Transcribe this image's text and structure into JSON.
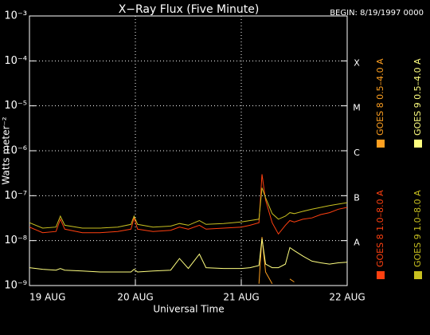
{
  "chart_data": {
    "type": "line",
    "title": "X−Ray Flux (Five Minute)",
    "subtitle": "BEGIN: 8/19/1997 0000",
    "x_label": "Universal Time",
    "y_label": "Watts meter⁻²",
    "ylog": true,
    "grid": true,
    "legend": "right",
    "xlim": [
      0,
      72
    ],
    "xticks": [
      {
        "value": 0,
        "label": "19 AUG"
      },
      {
        "value": 24,
        "label": "20 AUG"
      },
      {
        "value": 48,
        "label": "21 AUG"
      },
      {
        "value": 72,
        "label": "22 AUG"
      }
    ],
    "ylim": [
      1e-09,
      0.001
    ],
    "yticks": [
      {
        "value": 1e-09,
        "label": "10⁻⁹"
      },
      {
        "value": 1e-08,
        "label": "10⁻⁸"
      },
      {
        "value": 1e-07,
        "label": "10⁻⁷"
      },
      {
        "value": 1e-06,
        "label": "10⁻⁶"
      },
      {
        "value": 1e-05,
        "label": "10⁻⁵"
      },
      {
        "value": 0.0001,
        "label": "10⁻⁴"
      },
      {
        "value": 0.001,
        "label": "10⁻³"
      }
    ],
    "flare_classes": [
      {
        "value": 1e-08,
        "label": "A"
      },
      {
        "value": 1e-07,
        "label": "B"
      },
      {
        "value": 1e-06,
        "label": "C"
      },
      {
        "value": 1e-05,
        "label": "M"
      },
      {
        "value": 0.0001,
        "label": "X"
      }
    ],
    "x": [
      0,
      3,
      6,
      7,
      8,
      12,
      16,
      20,
      23,
      23.7,
      24.5,
      28,
      32,
      34,
      36,
      38.5,
      40,
      44,
      48,
      50,
      52,
      52.7,
      53.5,
      55,
      56.4,
      58,
      59,
      60,
      62,
      64,
      66,
      68,
      70,
      72
    ],
    "series": [
      {
        "name": "GOES 8 1.0–8.0 A",
        "color": "#ff4010",
        "values": [
          2e-08,
          1.5e-08,
          1.6e-08,
          3e-08,
          1.8e-08,
          1.5e-08,
          1.5e-08,
          1.6e-08,
          1.8e-08,
          3.2e-08,
          1.8e-08,
          1.6e-08,
          1.7e-08,
          2e-08,
          1.8e-08,
          2.2e-08,
          1.8e-08,
          1.9e-08,
          2e-08,
          2.2e-08,
          2.5e-08,
          3e-07,
          8e-08,
          2.5e-08,
          1.4e-08,
          2.2e-08,
          2.8e-08,
          2.6e-08,
          3e-08,
          3.2e-08,
          3.8e-08,
          4.2e-08,
          5e-08,
          5.5e-08
        ]
      },
      {
        "name": "GOES 8 0.5–4.0 A",
        "color": "#ffa020",
        "values": [
          null,
          null,
          null,
          null,
          null,
          null,
          null,
          null,
          null,
          null,
          null,
          null,
          null,
          null,
          null,
          null,
          null,
          null,
          null,
          null,
          1.1e-09,
          1.2e-08,
          2e-09,
          1.1e-09,
          null,
          null,
          1.4e-09,
          1.2e-09,
          null,
          null,
          null,
          null,
          null,
          null
        ]
      },
      {
        "name": "GOES 9 1.0–8.0 A",
        "color": "#c8c020",
        "values": [
          2.5e-08,
          1.9e-08,
          2e-08,
          3.5e-08,
          2.2e-08,
          1.9e-08,
          1.9e-08,
          2e-08,
          2.3e-08,
          3.5e-08,
          2.3e-08,
          2e-08,
          2.1e-08,
          2.4e-08,
          2.2e-08,
          2.8e-08,
          2.3e-08,
          2.4e-08,
          2.6e-08,
          2.8e-08,
          3e-08,
          1.5e-07,
          9e-08,
          4e-08,
          3e-08,
          3.5e-08,
          4.2e-08,
          4e-08,
          4.5e-08,
          5e-08,
          5.5e-08,
          6e-08,
          6.5e-08,
          7e-08
        ]
      },
      {
        "name": "GOES 9 0.5–4.0 A",
        "color": "#ffff80",
        "values": [
          2.5e-09,
          2.3e-09,
          2.2e-09,
          2.4e-09,
          2.2e-09,
          2.1e-09,
          2e-09,
          2e-09,
          2e-09,
          2.3e-09,
          2e-09,
          2.1e-09,
          2.2e-09,
          4e-09,
          2.4e-09,
          5e-09,
          2.5e-09,
          2.4e-09,
          2.4e-09,
          2.5e-09,
          2.8e-09,
          1.1e-08,
          3e-09,
          2.5e-09,
          2.5e-09,
          3e-09,
          7e-09,
          6e-09,
          4.5e-09,
          3.5e-09,
          3.2e-09,
          3e-09,
          3.2e-09,
          3.3e-09
        ]
      }
    ]
  }
}
